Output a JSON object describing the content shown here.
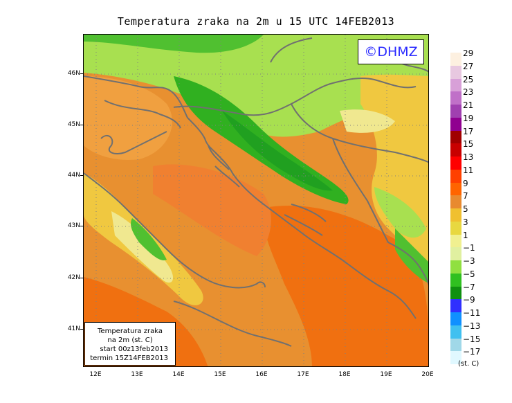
{
  "title": "Temperatura zraka na 2m u 15 UTC 14FEB2013",
  "credit": "©DHMZ",
  "info_box": {
    "line1": "Temperatura zraka",
    "line2": "na 2m (st. C)",
    "line3": "start 00z13feb2013",
    "line4": "termin 15Z14FEB2013"
  },
  "lat_labels": [
    "46N",
    "45N",
    "44N",
    "43N",
    "42N",
    "41N"
  ],
  "lon_labels": [
    "12E",
    "13E",
    "14E",
    "15E",
    "16E",
    "17E",
    "18E",
    "19E",
    "20E"
  ],
  "legend": {
    "unit": "(st. C)",
    "labels": [
      "29",
      "27",
      "25",
      "23",
      "21",
      "19",
      "17",
      "15",
      "13",
      "11",
      "9",
      "7",
      "5",
      "3",
      "1",
      "−1",
      "−3",
      "−5",
      "−7",
      "−9",
      "−11",
      "−13",
      "−15",
      "−17"
    ],
    "colors": [
      "#fdf0e0",
      "#e8c8e0",
      "#d8a0d8",
      "#c070c8",
      "#a040b0",
      "#900090",
      "#a00000",
      "#c80000",
      "#ff0000",
      "#ff4000",
      "#ff6400",
      "#e88a30",
      "#f0c030",
      "#e8d840",
      "#f0f090",
      "#e0f0a0",
      "#90e040",
      "#30c020",
      "#109010",
      "#3030ff",
      "#1090ff",
      "#40c0f0",
      "#a0d8e8",
      "#e0f8ff"
    ]
  },
  "map_colors": {
    "warm_orange": "#f07010",
    "orange": "#e89030",
    "light_orange": "#f0a040",
    "yellow": "#f0c840",
    "pale_yellow": "#f0e890",
    "light_green": "#a8e050",
    "green": "#50c030",
    "dark_green": "#20a020"
  }
}
